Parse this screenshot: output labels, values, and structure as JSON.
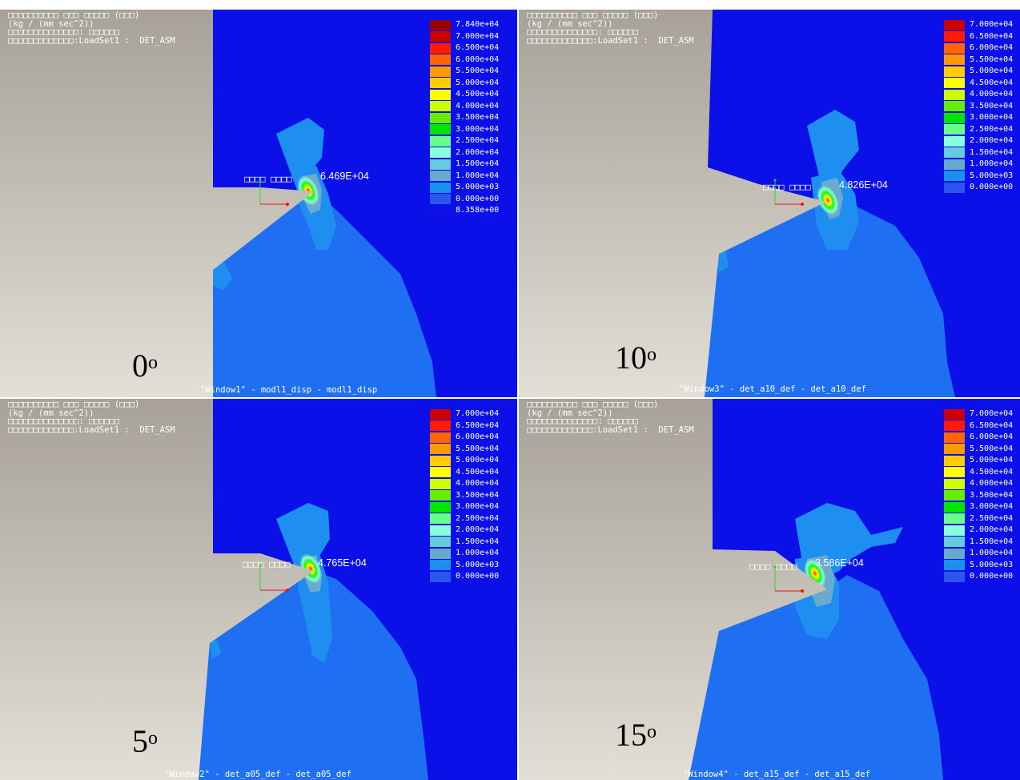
{
  "header": {
    "line1": "□□□□□□□□□□ □□□ □□□□□ (□□□)",
    "line2": "(kg / (mm sec^2))",
    "line3": "□□□□□□□□□□□□□□: □□□□□□",
    "line4": "□□□□□□□□□□□□□:LoadSet1 :  DET_ASM"
  },
  "legend_colors": [
    "#9b0000",
    "#cc0000",
    "#ff1a00",
    "#ff6600",
    "#ff9900",
    "#ffcc00",
    "#ffff00",
    "#ccff00",
    "#66ee00",
    "#00e600",
    "#66ff88",
    "#88ffdd",
    "#66ccdd",
    "#66aacc",
    "#1b8ff0",
    "#2b55ee",
    "#1010e6",
    "#242b78"
  ],
  "panels": [
    {
      "id": "window1",
      "angle": "0",
      "degree": "o",
      "probe_label": "□□□□ □□□□",
      "probe_value": "6.469E+04",
      "caption": "\"Window1\" - modl1_disp - modl1_disp",
      "legend": [
        "7.840e+04",
        "7.000e+04",
        "6.500e+04",
        "6.000e+04",
        "5.500e+04",
        "5.000e+04",
        "4.500e+04",
        "4.000e+04",
        "3.500e+04",
        "3.000e+04",
        "2.500e+04",
        "2.000e+04",
        "1.500e+04",
        "1.000e+04",
        "5.000e+03",
        "0.000e+00",
        "8.358e+00"
      ]
    },
    {
      "id": "window3",
      "angle": "10",
      "degree": "o",
      "probe_label": "□□□□ □□□□",
      "probe_value": "4.826E+04",
      "caption": "\"Window3\" - det_a10_def - det_a10_def",
      "legend": [
        "7.000e+04",
        "6.500e+04",
        "6.000e+04",
        "5.500e+04",
        "5.000e+04",
        "4.500e+04",
        "4.000e+04",
        "3.500e+04",
        "3.000e+04",
        "2.500e+04",
        "2.000e+04",
        "1.500e+04",
        "1.000e+04",
        "5.000e+03",
        "0.000e+00"
      ]
    },
    {
      "id": "window2",
      "angle": "5",
      "degree": "o",
      "probe_label": "□□□□ □□□□",
      "probe_value": "4.765E+04",
      "caption": "\"Window2\" - det_a05_def - det_a05_def",
      "legend": [
        "7.000e+04",
        "6.500e+04",
        "6.000e+04",
        "5.500e+04",
        "5.000e+04",
        "4.500e+04",
        "4.000e+04",
        "3.500e+04",
        "3.000e+04",
        "2.500e+04",
        "2.000e+04",
        "1.500e+04",
        "1.000e+04",
        "5.000e+03",
        "0.000e+00"
      ]
    },
    {
      "id": "window4",
      "angle": "15",
      "degree": "o",
      "probe_label": "□□□□ □□□□",
      "probe_value": "3.586E+04",
      "caption": "\"Window4\" - det_a15_def - det_a15_def",
      "legend": [
        "7.000e+04",
        "6.500e+04",
        "6.000e+04",
        "5.500e+04",
        "5.000e+04",
        "4.500e+04",
        "4.000e+04",
        "3.500e+04",
        "3.000e+04",
        "2.500e+04",
        "2.000e+04",
        "1.500e+04",
        "1.000e+04",
        "5.000e+03",
        "0.000e+00"
      ]
    }
  ]
}
